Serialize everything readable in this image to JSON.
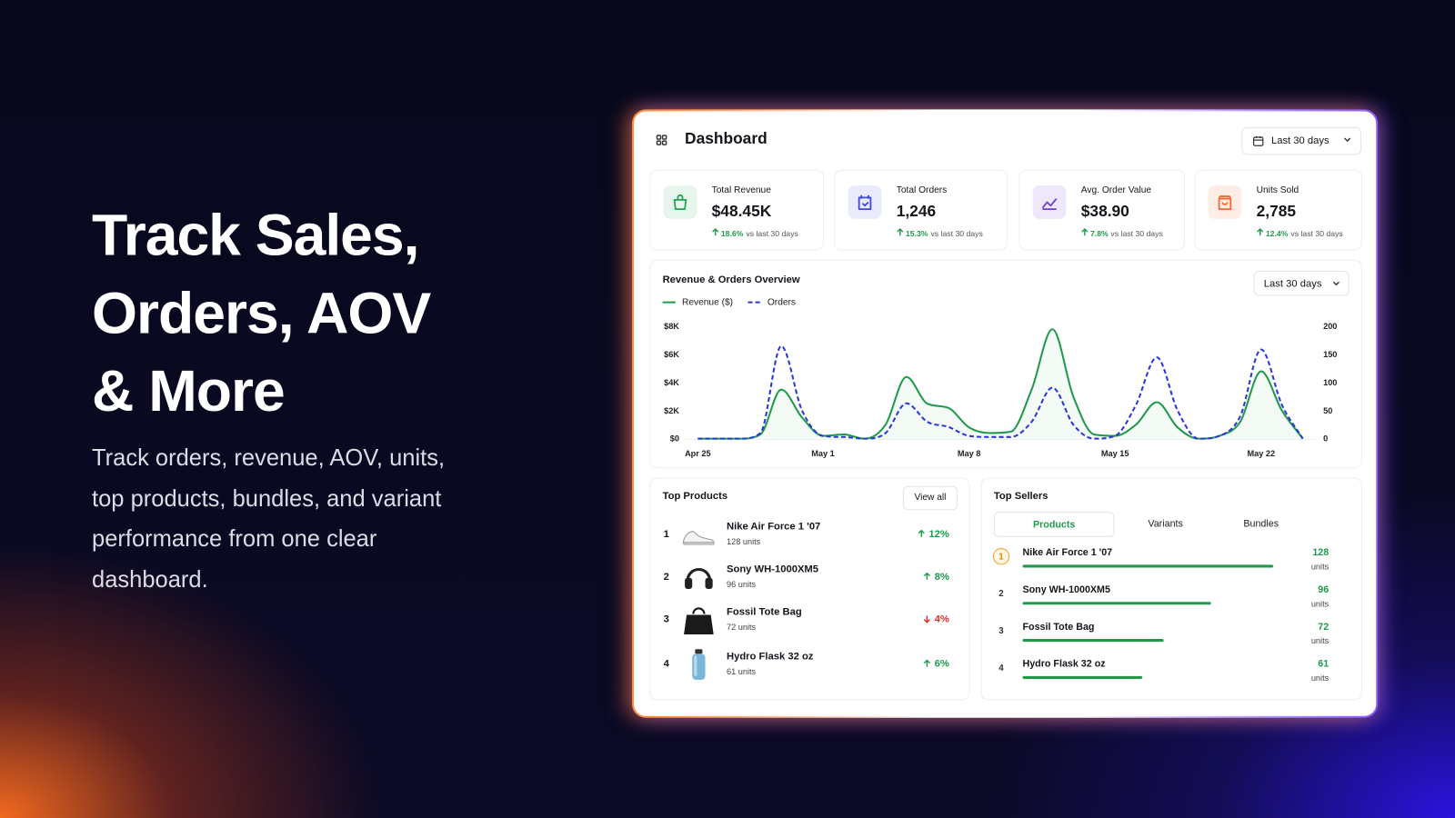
{
  "hero": {
    "title_lines": [
      "Track Sales,",
      "Orders, AOV",
      "& More"
    ],
    "description": "Track orders, revenue, AOV, units, top products, bundles, and variant performance from one clear dashboard."
  },
  "header": {
    "title": "Dashboard",
    "range": "Last 30 days"
  },
  "kpis": [
    {
      "label": "Total Revenue",
      "value": "$48.45K",
      "change": "18.6%",
      "comparison": "vs last 30 days"
    },
    {
      "label": "Total Orders",
      "value": "1,246",
      "change": "15.3%",
      "comparison": "vs last 30 days"
    },
    {
      "label": "Avg. Order Value",
      "value": "$38.90",
      "change": "7.8%",
      "comparison": "vs last 30 days"
    },
    {
      "label": "Units Sold",
      "value": "2,785",
      "change": "12.4%",
      "comparison": "vs last 30 days"
    }
  ],
  "chart_data": {
    "type": "line",
    "title": "Revenue & Orders Overview",
    "range": "Last 30 days",
    "categories": [
      "Apr 25",
      null,
      null,
      null,
      null,
      null,
      "May 1",
      null,
      null,
      null,
      null,
      null,
      null,
      "May 8",
      null,
      null,
      null,
      null,
      null,
      null,
      "May 15",
      null,
      null,
      null,
      null,
      null,
      null,
      "May 22",
      null,
      null
    ],
    "series": [
      {
        "name": "Revenue ($)",
        "color": "#1f9a4b",
        "dash": false,
        "values": [
          0,
          0,
          0,
          300,
          3500,
          1500,
          200,
          300,
          0,
          1000,
          4400,
          2500,
          2200,
          800,
          400,
          500,
          3500,
          7800,
          3000,
          300,
          200,
          1000,
          2600,
          800,
          0,
          200,
          1200,
          4800,
          2000,
          0
        ]
      },
      {
        "name": "Orders",
        "color": "#2b36d9",
        "dash": true,
        "axis": "y2",
        "values": [
          0,
          0,
          0,
          10,
          165,
          50,
          5,
          3,
          0,
          10,
          63,
          30,
          21,
          5,
          3,
          3,
          30,
          91,
          25,
          0,
          5,
          60,
          145,
          50,
          0,
          5,
          40,
          159,
          60,
          0
        ]
      }
    ],
    "ylim": [
      0,
      8000
    ],
    "yticks": [
      {
        "value": 0,
        "label": "$0"
      },
      {
        "value": 2000,
        "label": "$2K"
      },
      {
        "value": 4000,
        "label": "$4K"
      },
      {
        "value": 6000,
        "label": "$6K"
      },
      {
        "value": 8000,
        "label": "$8K"
      }
    ],
    "y2lim": [
      0,
      200
    ],
    "y2ticks": [
      0,
      50,
      100,
      150,
      200
    ]
  },
  "top_products": {
    "title": "Top Products",
    "action": "View all",
    "items": [
      {
        "rank": 1,
        "name": "Nike Air Force 1 '07",
        "units": "128 units",
        "change": "12%",
        "trend": "up"
      },
      {
        "rank": 2,
        "name": "Sony WH-1000XM5",
        "units": "96 units",
        "change": "8%",
        "trend": "up"
      },
      {
        "rank": 3,
        "name": "Fossil Tote Bag",
        "units": "72 units",
        "change": "4%",
        "trend": "down"
      },
      {
        "rank": 4,
        "name": "Hydro Flask 32 oz",
        "units": "61 units",
        "change": "6%",
        "trend": "up"
      }
    ]
  },
  "top_sellers": {
    "title": "Top Sellers",
    "tabs": [
      "Products",
      "Variants",
      "Bundles"
    ],
    "active_tab": 0,
    "unit": "units",
    "items": [
      {
        "rank": 1,
        "name": "Nike Air Force 1 '07",
        "units": 128
      },
      {
        "rank": 2,
        "name": "Sony WH-1000XM5",
        "units": 96
      },
      {
        "rank": 3,
        "name": "Fossil Tote Bag",
        "units": 72
      },
      {
        "rank": 4,
        "name": "Hydro Flask 32 oz",
        "units": 61
      }
    ]
  }
}
